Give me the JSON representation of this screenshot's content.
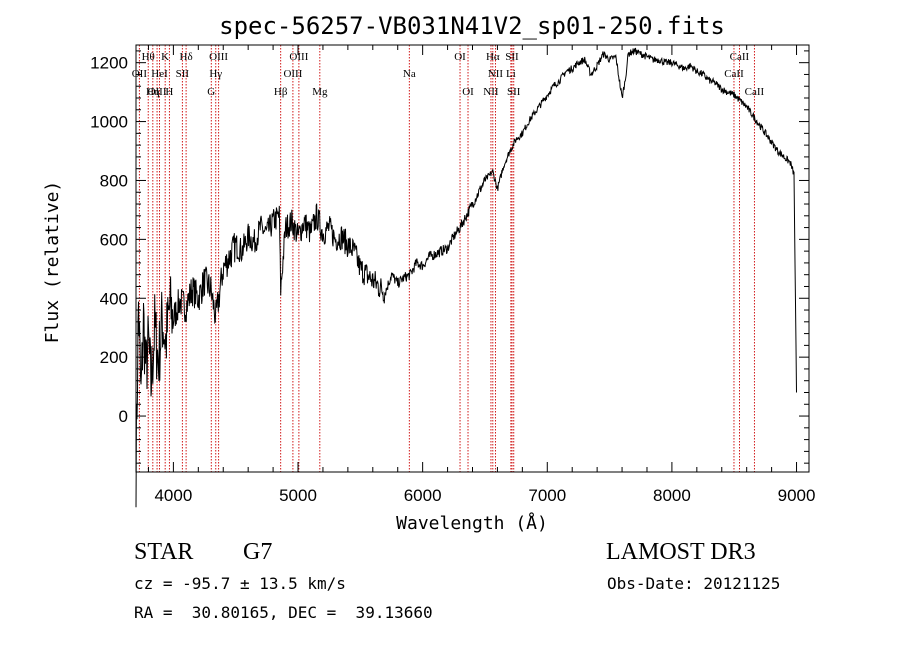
{
  "chart_data": {
    "type": "line",
    "title": "spec-56257-VB031N41V2_sp01-250.fits",
    "xlabel": "Wavelength (Å)",
    "ylabel": "Flux (relative)",
    "xlim": [
      3700,
      9100
    ],
    "ylim": [
      -190,
      1260
    ],
    "x_ticks": [
      4000,
      5000,
      6000,
      7000,
      8000,
      9000
    ],
    "x_tick_labels": [
      "4000",
      "5000",
      "6000",
      "7000",
      "8000",
      "9000"
    ],
    "y_ticks": [
      0,
      200,
      400,
      600,
      800,
      1000,
      1200
    ],
    "y_tick_labels": [
      "0",
      "200",
      "400",
      "600",
      "800",
      "1000",
      "1200"
    ],
    "x_minor_step": 200,
    "y_minor_step": 40,
    "series": [
      {
        "name": "flux",
        "x": [
          3700,
          3720,
          3740,
          3760,
          3780,
          3800,
          3820,
          3850,
          3880,
          3910,
          3940,
          3970,
          4000,
          4050,
          4100,
          4150,
          4200,
          4250,
          4300,
          4340,
          4400,
          4450,
          4500,
          4550,
          4600,
          4650,
          4700,
          4750,
          4800,
          4850,
          4861,
          4900,
          4950,
          5000,
          5050,
          5100,
          5150,
          5200,
          5250,
          5300,
          5350,
          5400,
          5450,
          5500,
          5550,
          5600,
          5650,
          5700,
          5750,
          5800,
          5850,
          5900,
          5950,
          6000,
          6050,
          6100,
          6150,
          6200,
          6250,
          6300,
          6350,
          6400,
          6450,
          6500,
          6563,
          6600,
          6650,
          6700,
          6750,
          6800,
          6850,
          6900,
          6950,
          7000,
          7050,
          7100,
          7150,
          7200,
          7250,
          7300,
          7350,
          7400,
          7450,
          7500,
          7550,
          7600,
          7625,
          7650,
          7700,
          7750,
          7800,
          7850,
          7900,
          7950,
          8000,
          8050,
          8100,
          8150,
          8200,
          8250,
          8300,
          8350,
          8400,
          8450,
          8500,
          8550,
          8600,
          8650,
          8700,
          8750,
          8800,
          8850,
          8900,
          8950,
          8980,
          9000
        ],
        "values": [
          -180,
          380,
          60,
          330,
          150,
          250,
          100,
          300,
          180,
          330,
          250,
          370,
          330,
          390,
          370,
          430,
          400,
          460,
          430,
          330,
          500,
          540,
          580,
          560,
          610,
          590,
          640,
          620,
          660,
          680,
          430,
          640,
          660,
          610,
          660,
          620,
          680,
          620,
          640,
          600,
          610,
          580,
          560,
          500,
          480,
          460,
          440,
          420,
          480,
          450,
          470,
          480,
          520,
          510,
          540,
          550,
          560,
          570,
          610,
          640,
          680,
          720,
          760,
          800,
          830,
          770,
          850,
          900,
          940,
          960,
          1000,
          1030,
          1060,
          1090,
          1120,
          1140,
          1170,
          1180,
          1200,
          1210,
          1160,
          1190,
          1230,
          1210,
          1220,
          1080,
          1140,
          1230,
          1240,
          1230,
          1220,
          1210,
          1210,
          1200,
          1200,
          1190,
          1180,
          1190,
          1170,
          1160,
          1140,
          1130,
          1110,
          1100,
          1090,
          1070,
          1050,
          1020,
          990,
          960,
          930,
          900,
          880,
          860,
          820,
          80
        ]
      }
    ],
    "line_groups": [
      {
        "group": "top",
        "labels": [
          "Hθ",
          "K",
          "Hδ",
          "OIII",
          "OIII",
          "OI",
          "Hα",
          "SII",
          "CaII"
        ],
        "waves": [
          3798,
          3934,
          4102,
          4363,
          5007,
          6300,
          6563,
          6717,
          8542
        ]
      },
      {
        "group": "mid",
        "labels": [
          "OII",
          "HeI",
          "SII",
          "Hγ",
          "OIII",
          "Na",
          "NII",
          "Li",
          "CaII"
        ],
        "waves": [
          3727,
          3889,
          4072,
          4340,
          4959,
          5893,
          6584,
          6708,
          8498
        ]
      },
      {
        "group": "bot",
        "labels": [
          "OIII",
          "Hη",
          "H",
          "G",
          "Hβ",
          "Mg",
          "OI",
          "NII",
          "SII",
          "CaII"
        ],
        "waves": [
          3869,
          3835,
          3968,
          4304,
          4861,
          5175,
          6364,
          6548,
          6731,
          8662
        ]
      }
    ],
    "line_colors": {
      "spectrum": "#000000",
      "marker": "#cc0000",
      "axes": "#000000"
    }
  },
  "info": {
    "object_class": "STAR",
    "subclass": "G7",
    "redshift_text": "cz = -95.7 ± 13.5 km/s",
    "coords_text": "RA =  30.80165, DEC =  39.13660",
    "survey": "LAMOST DR3",
    "obs_date_text": "Obs-Date: 20121125"
  }
}
